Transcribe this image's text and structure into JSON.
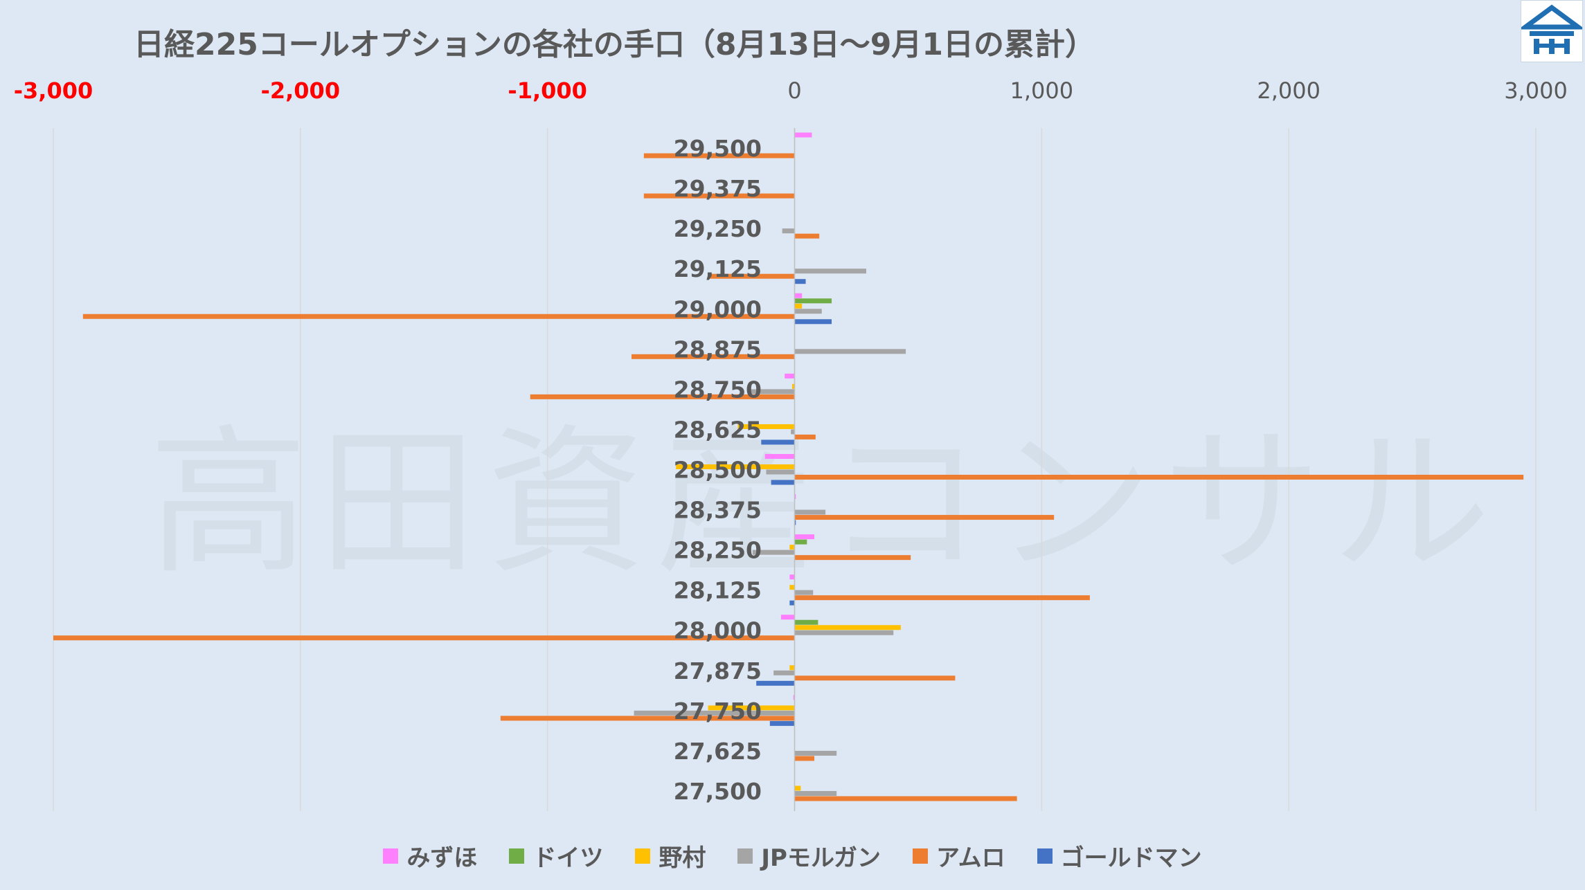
{
  "chart_data": {
    "type": "bar",
    "orientation": "horizontal",
    "title": "日経225コールオプションの各社の手口（8月13日〜9月1日の累計）",
    "categories": [
      "29,500",
      "29,375",
      "29,250",
      "29,125",
      "29,000",
      "28,875",
      "28,750",
      "28,625",
      "28,500",
      "28,375",
      "28,250",
      "28,125",
      "28,000",
      "27,875",
      "27,750",
      "27,625",
      "27,500"
    ],
    "xlim": [
      -3000,
      3000
    ],
    "x_ticks": [
      {
        "value": -3000,
        "label": "-3,000",
        "negative": true
      },
      {
        "value": -2000,
        "label": "-2,000",
        "negative": true
      },
      {
        "value": -1000,
        "label": "-1,000",
        "negative": true
      },
      {
        "value": 0,
        "label": "0",
        "negative": false
      },
      {
        "value": 1000,
        "label": "1,000",
        "negative": false
      },
      {
        "value": 2000,
        "label": "2,000",
        "negative": false
      },
      {
        "value": 3000,
        "label": "3,000",
        "negative": false
      }
    ],
    "grid": true,
    "legend_position": "bottom",
    "series": [
      {
        "name": "みずほ",
        "color": "#ff80ff",
        "values": [
          70,
          0,
          0,
          0,
          30,
          0,
          -40,
          0,
          -120,
          5,
          80,
          -20,
          -55,
          0,
          -5,
          0,
          0
        ]
      },
      {
        "name": "ドイツ",
        "color": "#70ad47",
        "values": [
          0,
          0,
          0,
          0,
          150,
          0,
          0,
          0,
          0,
          0,
          50,
          0,
          95,
          0,
          0,
          0,
          0
        ]
      },
      {
        "name": "野村",
        "color": "#ffc000",
        "values": [
          0,
          0,
          0,
          0,
          30,
          0,
          -10,
          -230,
          -480,
          0,
          -20,
          -20,
          430,
          -20,
          -350,
          0,
          25
        ]
      },
      {
        "name": "JPモルガン",
        "color": "#a5a5a5",
        "values": [
          0,
          0,
          -50,
          290,
          110,
          450,
          -190,
          -15,
          -115,
          125,
          -170,
          75,
          400,
          -85,
          -650,
          170,
          170
        ]
      },
      {
        "name": "アムロ",
        "color": "#ed7d31",
        "values": [
          -610,
          -610,
          100,
          -350,
          -2880,
          -660,
          -1070,
          85,
          2950,
          1050,
          470,
          1195,
          -3000,
          650,
          -1190,
          80,
          900
        ]
      },
      {
        "name": "ゴールドマン",
        "color": "#4472c4",
        "values": [
          0,
          0,
          0,
          45,
          150,
          0,
          0,
          -135,
          -95,
          5,
          0,
          -20,
          0,
          -155,
          -100,
          0,
          0
        ]
      }
    ]
  },
  "legend_items": [
    "みずほ",
    "ドイツ",
    "野村",
    "JPモルガン",
    "アムロ",
    "ゴールドマン"
  ],
  "watermark": "高田資産コンサル",
  "colors": {
    "background": "#dde8f4",
    "negative_tick": "#ff0000",
    "text": "#595959",
    "grid": "#d9d9d9",
    "logo_blue": "#1f6fb2"
  }
}
